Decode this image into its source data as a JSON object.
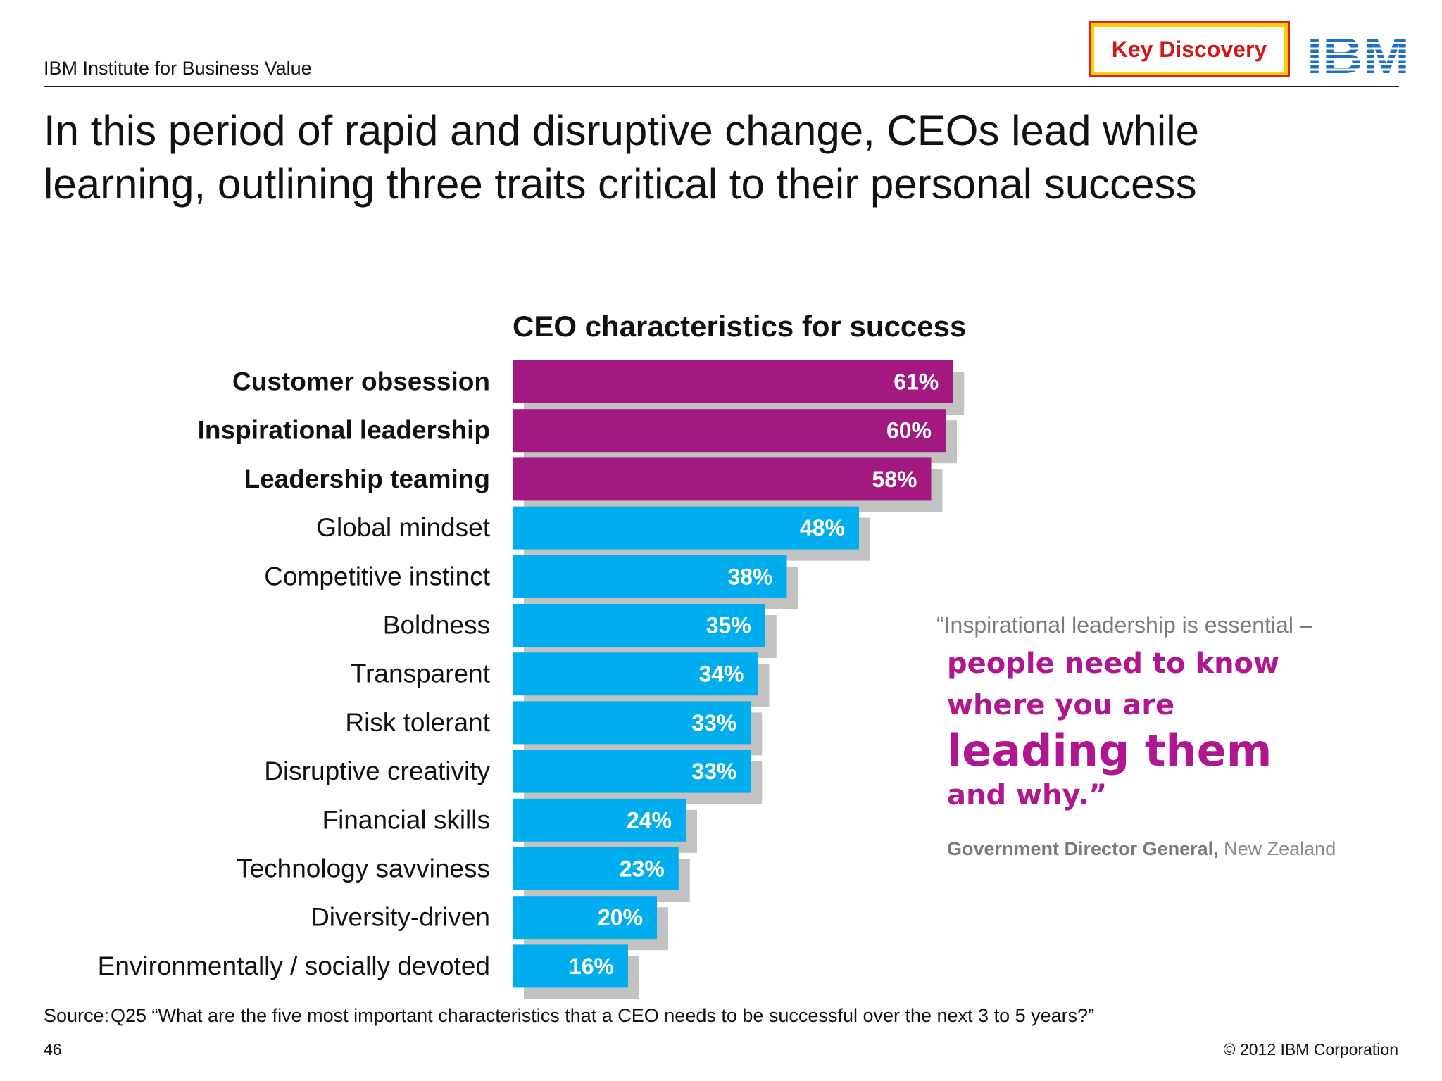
{
  "header": {
    "org": "IBM Institute for Business Value",
    "badge": "Key Discovery",
    "logo_text": "IBM"
  },
  "title": "In this period of rapid and disruptive change, CEOs lead while learning, outlining three traits critical to their personal success",
  "colors": {
    "highlight_bar": "#a3197f",
    "standard_bar": "#00aeef",
    "bar_shadow": "#c2c2c2",
    "quote_accent": "#b0168f",
    "badge_border": "#e02020",
    "badge_fill": "#f6d000",
    "logo": "#1f6fc0"
  },
  "chart_data": {
    "type": "bar",
    "orientation": "horizontal",
    "title": "CEO characteristics for success",
    "categories": [
      "Customer obsession",
      "Inspirational leadership",
      "Leadership teaming",
      "Global mindset",
      "Competitive instinct",
      "Boldness",
      "Transparent",
      "Risk tolerant",
      "Disruptive creativity",
      "Financial skills",
      "Technology savviness",
      "Diversity-driven",
      "Environmentally / socially devoted"
    ],
    "values": [
      61,
      60,
      58,
      48,
      38,
      35,
      34,
      33,
      33,
      24,
      23,
      20,
      16
    ],
    "value_labels": [
      "61%",
      "60%",
      "58%",
      "48%",
      "38%",
      "35%",
      "34%",
      "33%",
      "33%",
      "24%",
      "23%",
      "20%",
      "16%"
    ],
    "highlighted": [
      true,
      true,
      true,
      false,
      false,
      false,
      false,
      false,
      false,
      false,
      false,
      false,
      false
    ],
    "unit": "%",
    "xlim": [
      0,
      100
    ],
    "grid": false,
    "legend": "none"
  },
  "quote": {
    "lead": "“Inspirational leadership is essential –",
    "line1": "people need to know",
    "line2": "where you are",
    "line3": "leading them",
    "line4": "and why.”",
    "attribution_role": "Government Director General,",
    "attribution_place": " New Zealand"
  },
  "footer": {
    "source_label": "Source:",
    "source_text": "Q25 “What are the five most important characteristics that a CEO needs to be successful over the next 3 to 5 years?”",
    "page_number": "46",
    "copyright": "© 2012 IBM Corporation"
  }
}
